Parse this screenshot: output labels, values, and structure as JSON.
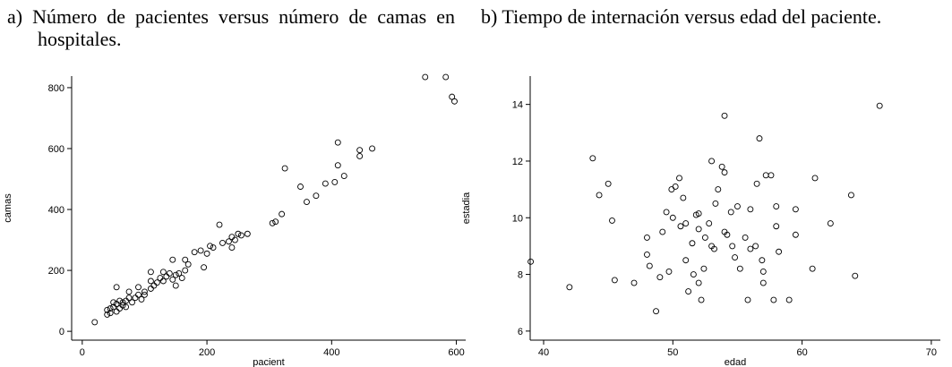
{
  "chart_data": [
    {
      "type": "scatter",
      "title": "a) Número de pacientes versus número de camas en hospitales.",
      "xlabel": "pacient",
      "ylabel": "camas",
      "xlim": [
        -17,
        615
      ],
      "ylim": [
        -29,
        838
      ],
      "xticks": [
        0,
        200,
        400,
        600
      ],
      "yticks": [
        0,
        200,
        400,
        600,
        800
      ],
      "color": "#000000",
      "x": [
        20,
        40,
        40,
        45,
        45,
        50,
        50,
        55,
        55,
        55,
        60,
        60,
        65,
        65,
        70,
        70,
        75,
        75,
        80,
        85,
        90,
        90,
        95,
        100,
        100,
        110,
        110,
        110,
        115,
        120,
        125,
        130,
        130,
        135,
        140,
        145,
        145,
        150,
        150,
        155,
        160,
        165,
        165,
        170,
        180,
        190,
        195,
        200,
        205,
        210,
        220,
        225,
        235,
        240,
        240,
        245,
        250,
        255,
        265,
        305,
        310,
        320,
        325,
        350,
        360,
        375,
        390,
        405,
        410,
        410,
        420,
        445,
        445,
        465,
        550,
        583,
        593,
        597
      ],
      "values": [
        30,
        55,
        70,
        60,
        75,
        80,
        95,
        65,
        90,
        145,
        75,
        100,
        85,
        95,
        80,
        100,
        110,
        130,
        95,
        110,
        120,
        145,
        105,
        120,
        130,
        140,
        165,
        195,
        150,
        160,
        175,
        165,
        195,
        180,
        190,
        170,
        235,
        150,
        185,
        190,
        175,
        200,
        235,
        220,
        260,
        265,
        210,
        255,
        280,
        275,
        350,
        290,
        295,
        275,
        310,
        300,
        320,
        315,
        320,
        355,
        360,
        385,
        535,
        475,
        425,
        445,
        485,
        490,
        545,
        620,
        510,
        575,
        595,
        600,
        835,
        835,
        770,
        755
      ]
    },
    {
      "type": "scatter",
      "title": "b) Tiempo de internación versus edad del paciente.",
      "xlabel": "edad",
      "ylabel": "estadia",
      "xlim": [
        38.96,
        70.7
      ],
      "ylim": [
        5.68,
        15.0
      ],
      "xticks": [
        40,
        50,
        60,
        70
      ],
      "yticks": [
        6,
        8,
        10,
        12,
        14
      ],
      "color": "#000000",
      "x": [
        39,
        42,
        43.8,
        44.3,
        45,
        45.3,
        45.5,
        47,
        48,
        48,
        48.2,
        48.7,
        49,
        49.2,
        49.5,
        49.7,
        49.9,
        50,
        50.2,
        50.5,
        50.6,
        50.8,
        51,
        51,
        51.2,
        51.5,
        51.6,
        51.8,
        52,
        52,
        52,
        52.2,
        52.4,
        52.5,
        52.8,
        53,
        53,
        53.2,
        53.3,
        53.5,
        53.8,
        54,
        54,
        54,
        54.2,
        54.5,
        54.6,
        54.8,
        55,
        55.2,
        55.6,
        55.8,
        56,
        56,
        56.4,
        56.5,
        56.7,
        56.9,
        57,
        57,
        57.2,
        57.6,
        57.8,
        58,
        58,
        58.2,
        59,
        59.5,
        59.5,
        60.8,
        61,
        62.2,
        63.8,
        64.1,
        66
      ],
      "values": [
        8.45,
        7.55,
        12.1,
        10.8,
        11.2,
        9.9,
        7.8,
        7.7,
        9.3,
        8.7,
        8.3,
        6.7,
        7.9,
        9.5,
        10.2,
        8.1,
        11.0,
        10.0,
        11.1,
        11.4,
        9.7,
        10.7,
        9.8,
        8.5,
        7.4,
        9.1,
        8.0,
        10.1,
        10.15,
        9.6,
        7.7,
        7.1,
        8.2,
        9.3,
        9.8,
        12.0,
        9.0,
        8.9,
        10.5,
        11.0,
        11.8,
        13.6,
        11.6,
        9.5,
        9.4,
        10.2,
        9.0,
        8.6,
        10.4,
        8.2,
        9.3,
        7.1,
        10.3,
        8.9,
        9.0,
        11.2,
        12.8,
        8.5,
        8.1,
        7.7,
        11.5,
        11.5,
        7.1,
        9.7,
        10.4,
        8.8,
        7.1,
        10.3,
        9.4,
        8.2,
        11.4,
        9.8,
        10.8,
        7.95,
        13.95
      ]
    }
  ]
}
